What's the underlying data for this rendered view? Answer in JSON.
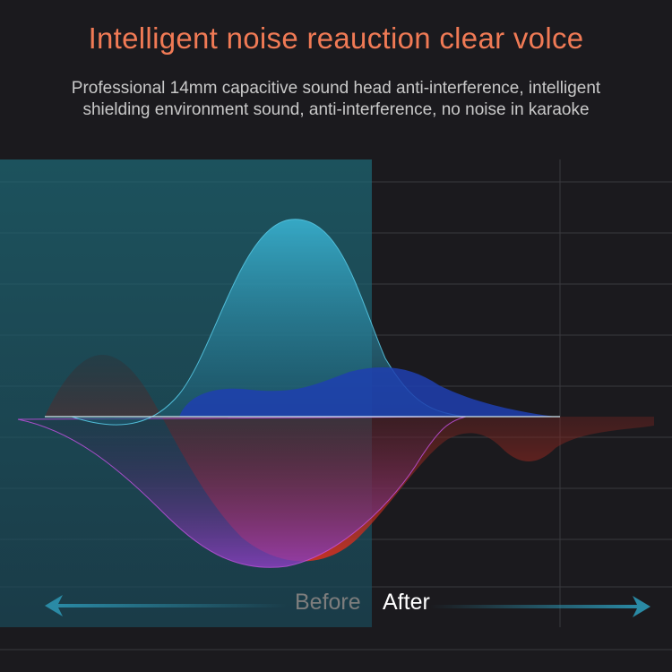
{
  "title": "Intelligent noise reauction clear volce",
  "subtitle_lines": [
    "Professional 14mm capacitive sound head anti-interference, intelligent",
    "shielding environment sound, anti-interference, no noise in karaoke"
  ],
  "labels": {
    "before": "Before",
    "after": "After"
  },
  "colors": {
    "title": "#f07a55",
    "before_panel": "#1f5a6a",
    "arrow": "#2a8aa5",
    "background": "#1b1a1e"
  }
}
